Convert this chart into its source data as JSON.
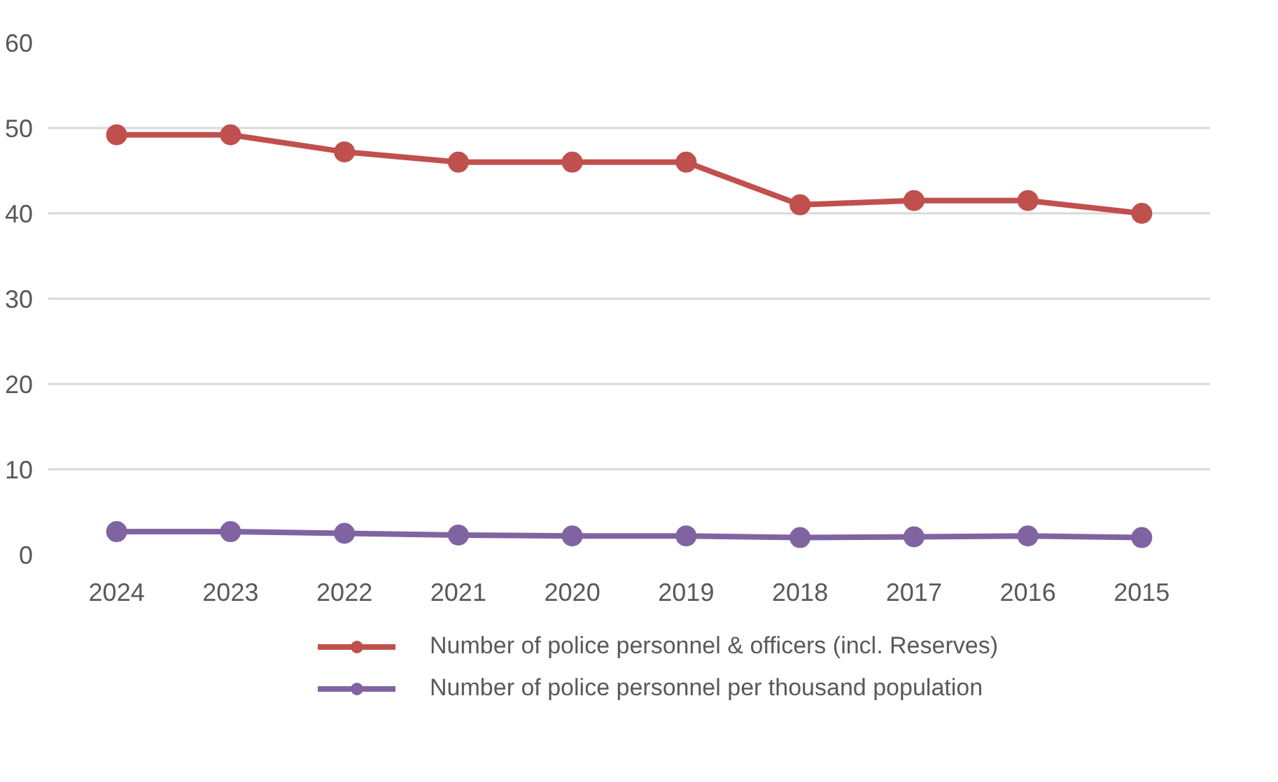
{
  "chart_data": {
    "type": "line",
    "categories": [
      "2024",
      "2023",
      "2022",
      "2021",
      "2020",
      "2019",
      "2018",
      "2017",
      "2016",
      "2015"
    ],
    "series": [
      {
        "name": "Number of police personnel & officers (incl. Reserves)",
        "color": "#c0504d",
        "values": [
          49.2,
          49.2,
          47.2,
          46,
          46,
          46,
          41,
          41.5,
          41.5,
          40
        ]
      },
      {
        "name": "Number of police personnel per thousand population",
        "color": "#8064a2",
        "values": [
          2.7,
          2.7,
          2.5,
          2.3,
          2.2,
          2.2,
          2.0,
          2.1,
          2.2,
          2.0
        ]
      }
    ],
    "ylim": [
      0,
      60
    ],
    "yticks": [
      0,
      10,
      20,
      30,
      40,
      50,
      60
    ],
    "grid": "y",
    "legend": "bottom",
    "marker": "circle",
    "line_style": "solid"
  }
}
